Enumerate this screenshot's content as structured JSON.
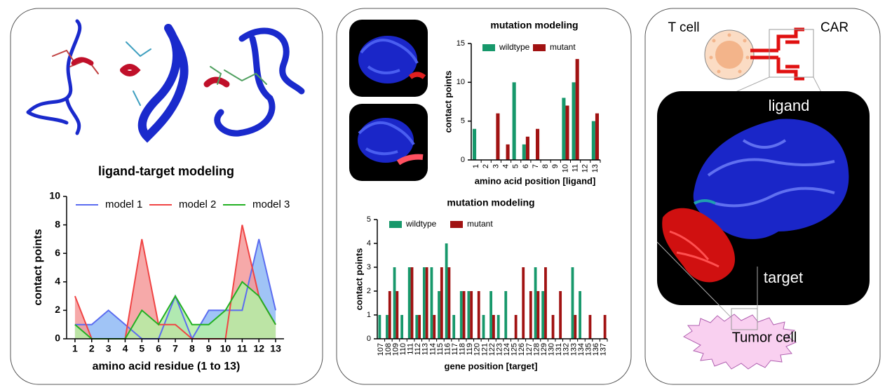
{
  "chart_data": [
    {
      "type": "area",
      "title": "ligand-target modeling",
      "x_label": "amino acid residue (1 to 13)",
      "y_label": "contact points",
      "x": [
        1,
        2,
        3,
        4,
        5,
        6,
        7,
        8,
        9,
        10,
        11,
        12,
        13
      ],
      "xlim": [
        0.5,
        13.5
      ],
      "xticks": [
        1,
        2,
        3,
        4,
        5,
        6,
        7,
        8,
        9,
        10,
        11,
        12,
        13
      ],
      "ylim": [
        0,
        10
      ],
      "yticks": [
        0,
        2,
        4,
        6,
        8,
        10
      ],
      "legend": "top",
      "series": [
        {
          "name": "model 1",
          "color": "#5b6cf0",
          "fill_color": "#8fbaf5",
          "values": [
            1,
            1,
            2,
            1,
            0,
            0,
            3,
            0,
            2,
            2,
            2,
            7,
            2
          ]
        },
        {
          "name": "model 2",
          "color": "#f04444",
          "fill_color": "#f59a9a",
          "values": [
            3,
            0,
            0,
            0,
            7,
            1,
            1,
            0,
            0,
            0,
            8,
            3,
            1
          ]
        },
        {
          "name": "model 3",
          "color": "#22b022",
          "fill_color": "#b4f0a4",
          "values": [
            1,
            0,
            0,
            0,
            2,
            1,
            3,
            1,
            1,
            2,
            4,
            3,
            1
          ]
        }
      ]
    },
    {
      "type": "bar",
      "title": "mutation modeling",
      "x_label": "amino acid position [ligand]",
      "y_label": "contact points",
      "categories": [
        "1",
        "2",
        "3",
        "4",
        "5",
        "6",
        "7",
        "8",
        "9",
        "10",
        "11",
        "12",
        "13"
      ],
      "ylim": [
        0,
        15
      ],
      "yticks": [
        0,
        5,
        10,
        15
      ],
      "legend": "top-left",
      "series": [
        {
          "name": "wildtype",
          "color": "#17986b",
          "values": [
            4,
            0,
            0,
            0,
            10,
            2,
            0,
            0,
            0,
            8,
            10,
            0,
            5
          ]
        },
        {
          "name": "mutant",
          "color": "#a11212",
          "values": [
            0,
            0,
            6,
            2,
            0,
            3,
            4,
            0,
            0,
            7,
            13,
            0,
            6
          ]
        }
      ]
    },
    {
      "type": "bar",
      "title": "mutation modeling",
      "x_label": "gene position [target]",
      "y_label": "contact points",
      "categories": [
        "107",
        "108",
        "109",
        "110",
        "111",
        "112",
        "113",
        "114",
        "115",
        "116",
        "117",
        "118",
        "119",
        "120",
        "121",
        "122",
        "123",
        "124",
        "125",
        "126",
        "127",
        "128",
        "129",
        "130",
        "131",
        "132",
        "133",
        "134",
        "135",
        "136",
        "137"
      ],
      "ylim": [
        0,
        5
      ],
      "yticks": [
        0,
        1,
        2,
        3,
        4,
        5
      ],
      "legend": "top-left",
      "series": [
        {
          "name": "wildtype",
          "color": "#17986b",
          "values": [
            1,
            1,
            3,
            1,
            3,
            1,
            3,
            3,
            2,
            4,
            1,
            2,
            2,
            0,
            1,
            2,
            1,
            2,
            0,
            0,
            0,
            3,
            2,
            0,
            0,
            0,
            3,
            2,
            0,
            0,
            0
          ]
        },
        {
          "name": "mutant",
          "color": "#a11212",
          "values": [
            0,
            2,
            2,
            0,
            3,
            1,
            3,
            1,
            3,
            3,
            0,
            2,
            2,
            2,
            0,
            1,
            0,
            0,
            1,
            3,
            2,
            2,
            3,
            1,
            2,
            0,
            1,
            0,
            1,
            0,
            1
          ]
        }
      ]
    }
  ],
  "diagram": {
    "t_cell": "T cell",
    "car": "CAR",
    "ligand": "ligand",
    "target": "target",
    "tumor_cell": "Tumor cell"
  }
}
